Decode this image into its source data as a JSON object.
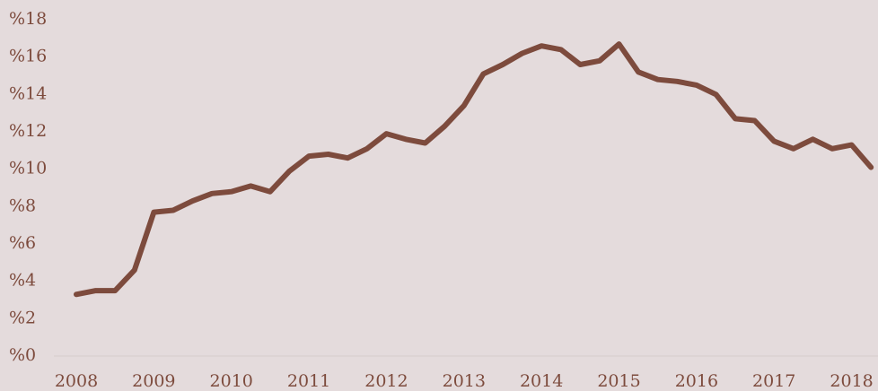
{
  "chart_data": {
    "type": "line",
    "categories": [
      "2008",
      null,
      null,
      null,
      "2009",
      null,
      null,
      null,
      "2010",
      null,
      null,
      null,
      "2011",
      null,
      null,
      null,
      "2012",
      null,
      null,
      null,
      "2013",
      null,
      null,
      null,
      "2014",
      null,
      null,
      null,
      "2015",
      null,
      null,
      null,
      "2016",
      null,
      null,
      null,
      "2017",
      null,
      null,
      null,
      "2018",
      null
    ],
    "series": [
      {
        "color": "#7d4b3d",
        "values": [
          3.3,
          3.5,
          3.5,
          4.6,
          7.7,
          7.8,
          8.3,
          8.7,
          8.8,
          9.1,
          8.8,
          9.9,
          10.7,
          10.8,
          10.6,
          11.1,
          11.9,
          11.6,
          11.4,
          12.3,
          13.4,
          15.1,
          15.6,
          16.2,
          16.6,
          16.4,
          15.6,
          15.8,
          16.7,
          15.2,
          14.8,
          14.7,
          14.5,
          14.0,
          12.7,
          12.6,
          11.5,
          11.1,
          11.6,
          11.1,
          11.3,
          10.1
        ]
      }
    ],
    "ylim": [
      0,
      18
    ],
    "yticks": [
      {
        "value": 0,
        "label": "%0"
      },
      {
        "value": 2,
        "label": "%2"
      },
      {
        "value": 4,
        "label": "%4"
      },
      {
        "value": 6,
        "label": "%6"
      },
      {
        "value": 8,
        "label": "%8"
      },
      {
        "value": 10,
        "label": "%10"
      },
      {
        "value": 12,
        "label": "%12"
      },
      {
        "value": 14,
        "label": "%14"
      },
      {
        "value": 16,
        "label": "%16"
      },
      {
        "value": 18,
        "label": "%18"
      }
    ],
    "grid": false
  }
}
